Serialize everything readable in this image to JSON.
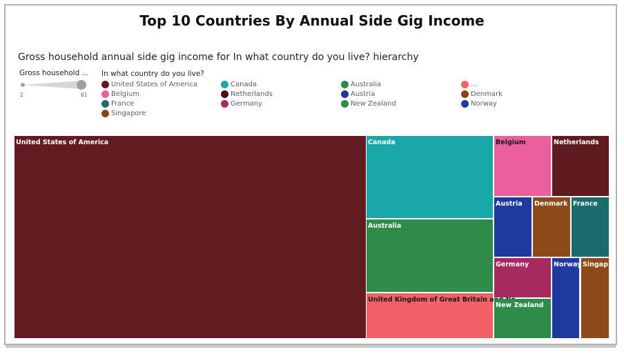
{
  "title": "Top 10 Countries By Annual Side Gig Income",
  "subtitle": "Gross household annual side gig income for In what country do you live? hierarchy",
  "size_legend": {
    "title": "Gross household ...",
    "min_label": "2",
    "max_label": "61"
  },
  "color_legend": {
    "title": "In what country do you live?",
    "items": [
      {
        "label": "United States of America",
        "color": "#5f1b20"
      },
      {
        "label": "Canada",
        "color": "#1aa7a7"
      },
      {
        "label": "Australia",
        "color": "#2e8b4a"
      },
      {
        "label": "...",
        "color": "#f46068"
      },
      {
        "label": "Belgium",
        "color": "#ea5f9c"
      },
      {
        "label": "Netherlands",
        "color": "#4a0f12"
      },
      {
        "label": "Austria",
        "color": "#1f3a9e"
      },
      {
        "label": "Denmark",
        "color": "#8c4214"
      },
      {
        "label": "France",
        "color": "#1a6b6b"
      },
      {
        "label": "Germany",
        "color": "#a6295f"
      },
      {
        "label": "New Zealand",
        "color": "#2e8b4a"
      },
      {
        "label": "Norway",
        "color": "#1f3a9e"
      },
      {
        "label": "Singapore",
        "color": "#8c4214"
      }
    ]
  },
  "chart_data": {
    "type": "treemap",
    "title": "Top 10 Countries By Annual Side Gig Income",
    "subtitle": "Gross household annual side gig income for In what country do you live? hierarchy",
    "nodes": [
      {
        "label": "United States of America",
        "value": 61,
        "color": "#621b20"
      },
      {
        "label": "Canada",
        "value": 8.5,
        "color": "#1aa7a7"
      },
      {
        "label": "Australia",
        "value": 7.5,
        "color": "#2e8b4a"
      },
      {
        "label": "United Kingdom of Great Britain and No...",
        "value": 4.8,
        "color": "#f46068"
      },
      {
        "label": "Belgium",
        "value": 2.9,
        "color": "#ea5f9c"
      },
      {
        "label": "Netherlands",
        "value": 2.9,
        "color": "#5f1b20"
      },
      {
        "label": "Austria",
        "value": 2.4,
        "color": "#1f3a9e"
      },
      {
        "label": "Denmark",
        "value": 2.4,
        "color": "#8c4a1a"
      },
      {
        "label": "France",
        "value": 2.4,
        "color": "#1a6b6b"
      },
      {
        "label": "Germany",
        "value": 2.0,
        "color": "#a6295f"
      },
      {
        "label": "New Zealand",
        "value": 2.0,
        "color": "#2e8b4a"
      },
      {
        "label": "Norway",
        "value": 2.0,
        "color": "#1f3a9e"
      },
      {
        "label": "Singap...",
        "value": 2.0,
        "color": "#8c4a1a"
      }
    ]
  }
}
